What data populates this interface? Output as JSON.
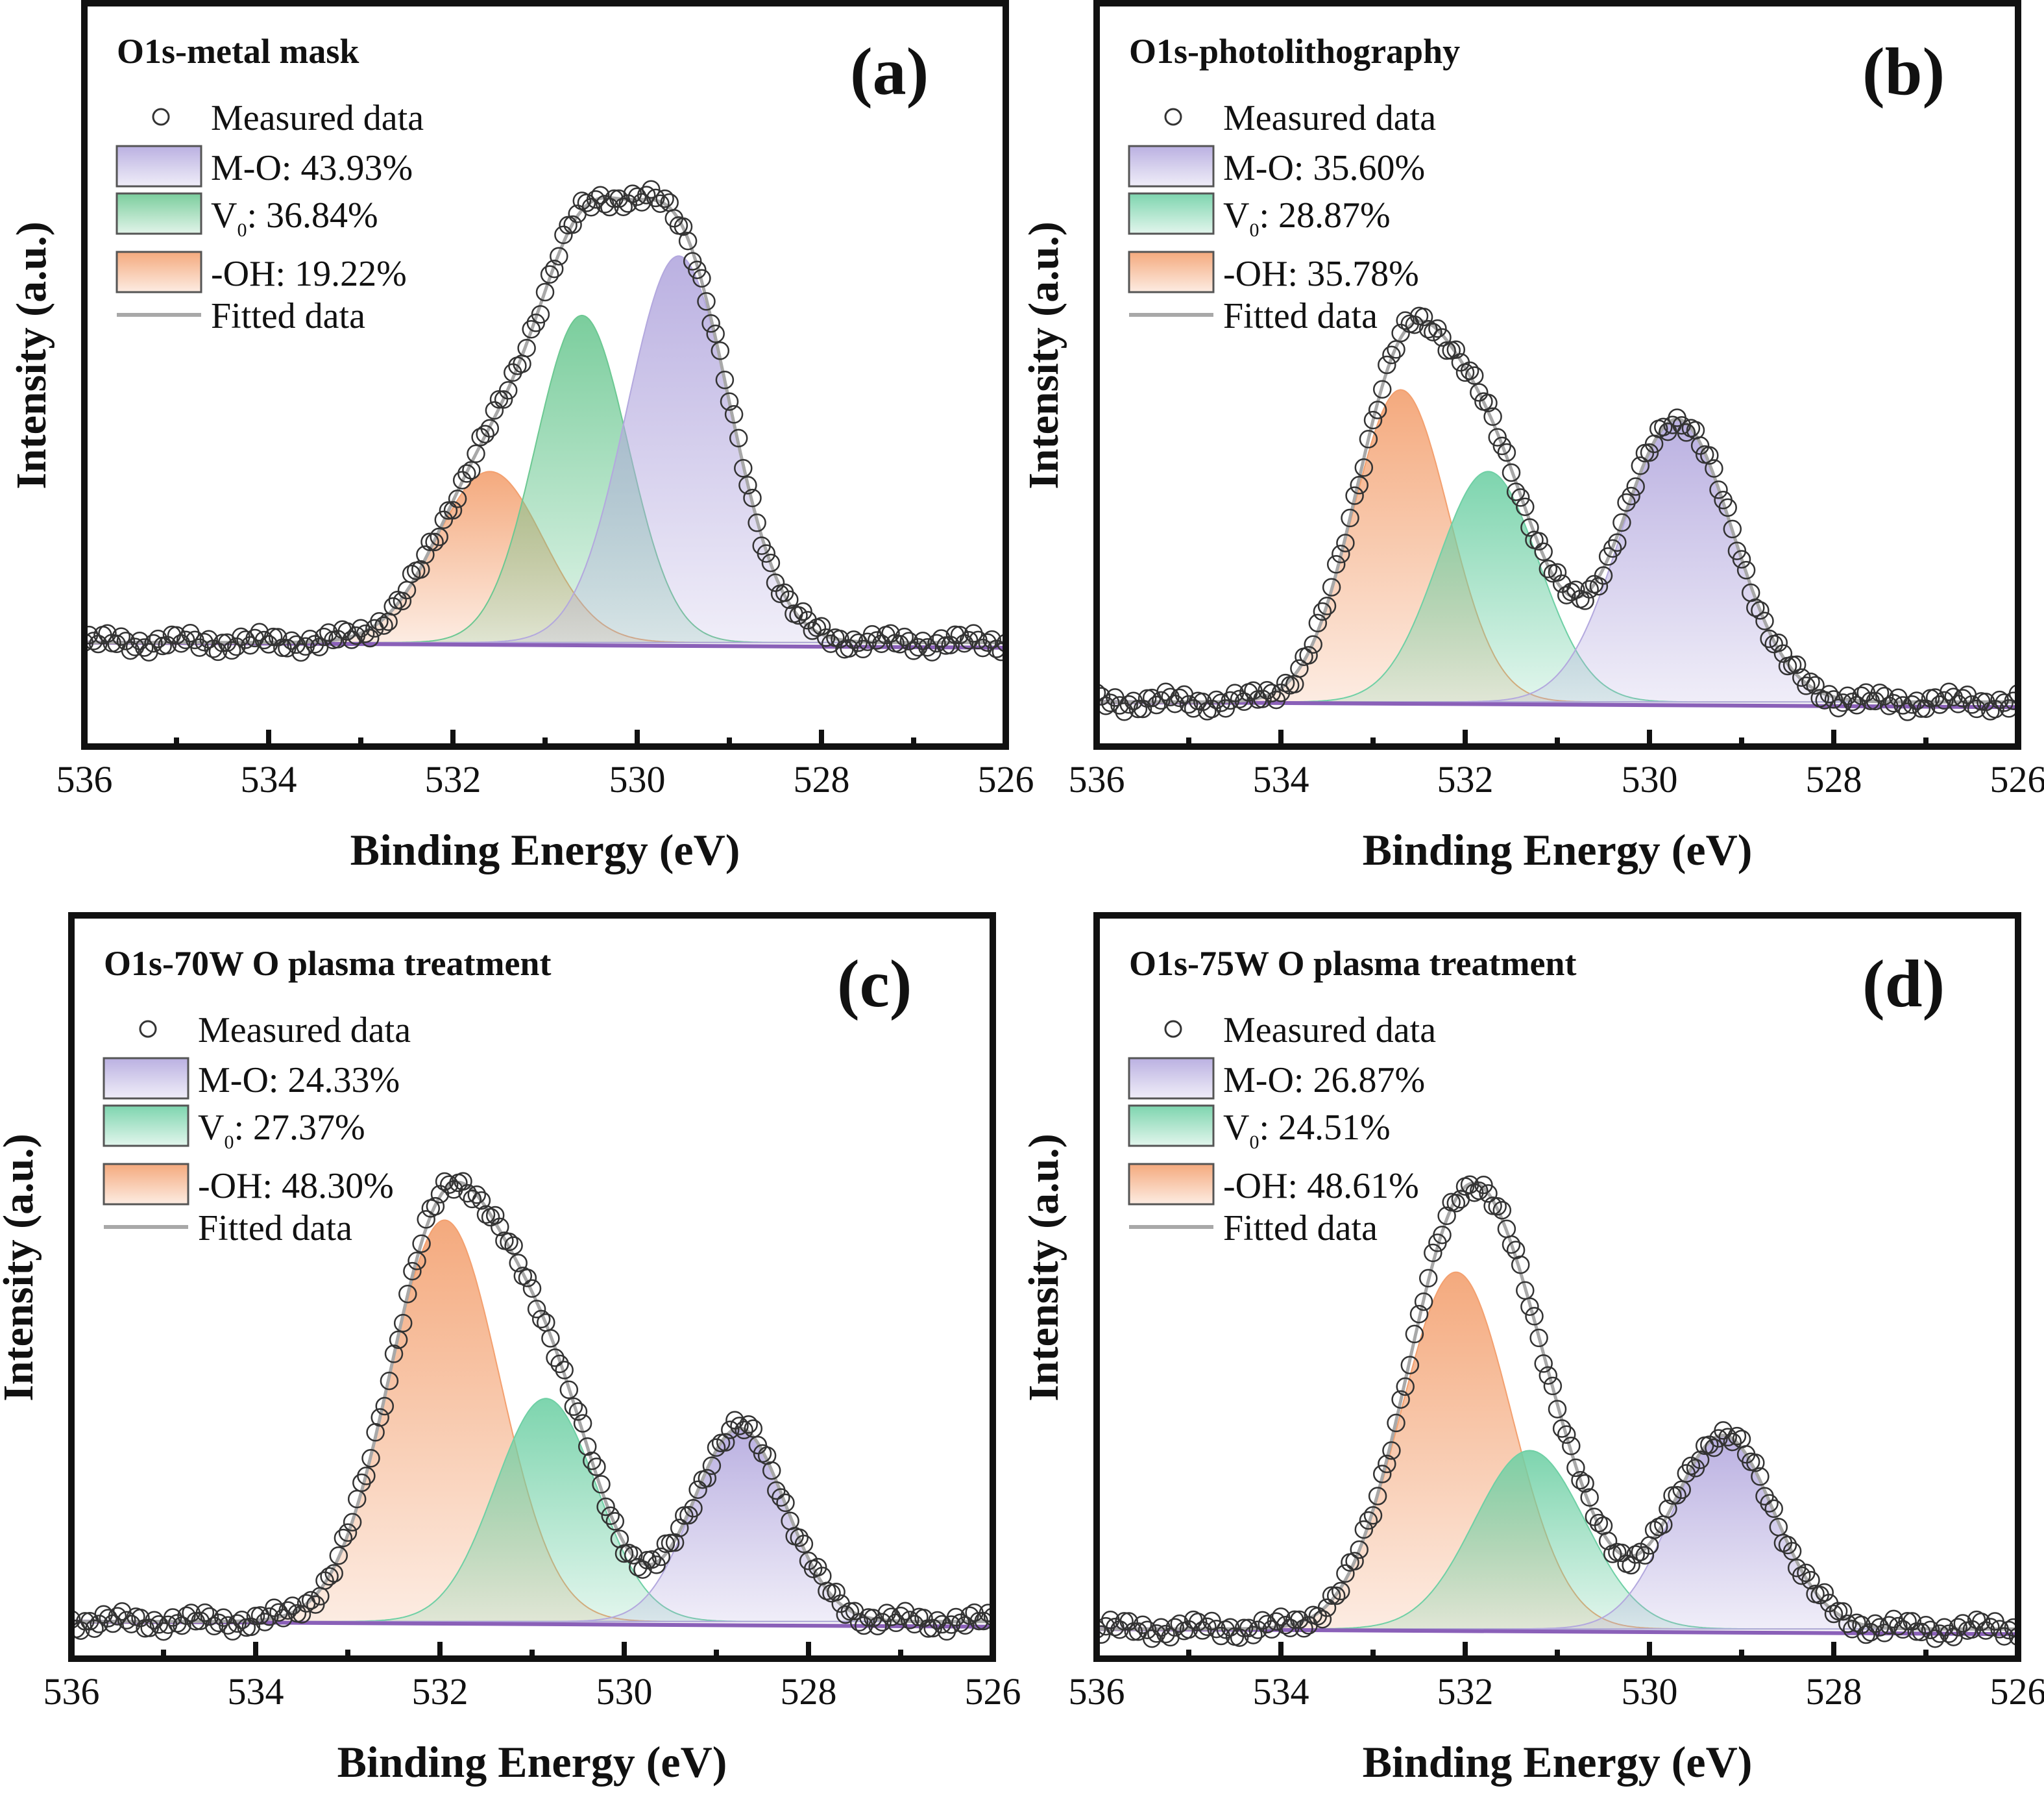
{
  "chart_data": [
    {
      "type": "area",
      "panel_label": "(a)",
      "title": "O1s-metal mask",
      "xlabel": "Binding Energy (eV)",
      "ylabel": "Intensity (a.u.)",
      "xlim": [
        536,
        526
      ],
      "xticks": [
        "536",
        "534",
        "532",
        "530",
        "528",
        "526"
      ],
      "baseline": 0.14,
      "legend": {
        "measured": "Measured data",
        "fitted": "Fitted data"
      },
      "components": [
        {
          "key": "mo",
          "label": "M-O: 43.93%",
          "center": 529.55,
          "height": 0.52,
          "sigma": 0.56,
          "color": "#b3a8de"
        },
        {
          "key": "vo",
          "label_main": "V",
          "label_sub": "0",
          "label_rest": ": 36.84%",
          "center": 530.6,
          "height": 0.44,
          "sigma": 0.5,
          "color": "#6cc892"
        },
        {
          "key": "oh",
          "label": "-OH: 19.22%",
          "center": 531.6,
          "height": 0.23,
          "sigma": 0.58,
          "color": "#f3a06f"
        }
      ]
    },
    {
      "type": "area",
      "panel_label": "(b)",
      "title": "O1s-photolithography",
      "xlabel": "Binding Energy (eV)",
      "ylabel": "Intensity (a.u.)",
      "xlim": [
        536,
        526
      ],
      "xticks": [
        "536",
        "534",
        "532",
        "530",
        "528",
        "526"
      ],
      "baseline": 0.06,
      "legend": {
        "measured": "Measured data",
        "fitted": "Fitted data"
      },
      "components": [
        {
          "key": "mo",
          "label": "M-O: 35.60%",
          "center": 529.7,
          "height": 0.38,
          "sigma": 0.6,
          "color": "#b3a8de"
        },
        {
          "key": "vo",
          "label_main": "V",
          "label_sub": "0",
          "label_rest": ": 28.87%",
          "center": 531.75,
          "height": 0.31,
          "sigma": 0.55,
          "color": "#6fd0a5"
        },
        {
          "key": "oh",
          "label": "-OH: 35.78%",
          "center": 532.7,
          "height": 0.42,
          "sigma": 0.52,
          "color": "#f3a06f"
        }
      ]
    },
    {
      "type": "area",
      "panel_label": "(c)",
      "title": "O1s-70W O plasma treatment",
      "xlabel": "Binding Energy (eV)",
      "ylabel": "Intensity (a.u.)",
      "xlim": [
        536,
        526
      ],
      "xticks": [
        "536",
        "534",
        "532",
        "530",
        "528",
        "526"
      ],
      "baseline": 0.05,
      "legend": {
        "measured": "Measured data",
        "fitted": "Fitted data"
      },
      "components": [
        {
          "key": "mo",
          "label": "M-O: 24.33%",
          "center": 528.75,
          "height": 0.26,
          "sigma": 0.5,
          "color": "#b3a8de"
        },
        {
          "key": "vo",
          "label_main": "V",
          "label_sub": "0",
          "label_rest": ": 27.37%",
          "center": 530.85,
          "height": 0.3,
          "sigma": 0.55,
          "color": "#6fd0a5"
        },
        {
          "key": "oh",
          "label": "-OH: 48.30%",
          "center": 531.95,
          "height": 0.54,
          "sigma": 0.6,
          "color": "#f3a06f"
        }
      ]
    },
    {
      "type": "area",
      "panel_label": "(d)",
      "title": "O1s-75W O plasma treatment",
      "xlabel": "Binding Energy (eV)",
      "ylabel": "Intensity (a.u.)",
      "xlim": [
        536,
        526
      ],
      "xticks": [
        "536",
        "534",
        "532",
        "530",
        "528",
        "526"
      ],
      "baseline": 0.04,
      "legend": {
        "measured": "Measured data",
        "fitted": "Fitted data"
      },
      "components": [
        {
          "key": "mo",
          "label": "M-O: 26.87%",
          "center": 529.2,
          "height": 0.26,
          "sigma": 0.55,
          "color": "#b3a8de"
        },
        {
          "key": "vo",
          "label_main": "V",
          "label_sub": "0",
          "label_rest": ": 24.51%",
          "center": 531.3,
          "height": 0.24,
          "sigma": 0.6,
          "color": "#6fd0a5"
        },
        {
          "key": "oh",
          "label": "-OH: 48.61%",
          "center": 532.1,
          "height": 0.48,
          "sigma": 0.6,
          "color": "#f3a06f"
        }
      ]
    }
  ]
}
